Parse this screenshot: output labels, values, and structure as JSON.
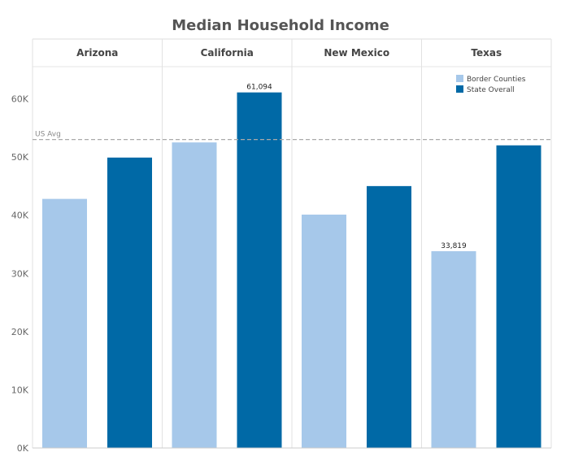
{
  "chart_data": {
    "type": "bar",
    "title": "Median Household Income",
    "categories": [
      "Arizona",
      "California",
      "New Mexico",
      "Texas"
    ],
    "series": [
      {
        "name": "Border Counties",
        "color": "#a6c8ea",
        "values": [
          42800,
          52500,
          40100,
          33819
        ]
      },
      {
        "name": "State Overall",
        "color": "#0069a6",
        "values": [
          49900,
          61094,
          45000,
          52000
        ]
      }
    ],
    "data_labels": [
      {
        "series": 1,
        "category": 1,
        "text": "61,094"
      },
      {
        "series": 0,
        "category": 3,
        "text": "33,819"
      }
    ],
    "ylim": [
      0,
      60000
    ],
    "yticks": [
      {
        "value": 0,
        "label": "0K"
      },
      {
        "value": 10000,
        "label": "10K"
      },
      {
        "value": 20000,
        "label": "20K"
      },
      {
        "value": 30000,
        "label": "30K"
      },
      {
        "value": 40000,
        "label": "40K"
      },
      {
        "value": 50000,
        "label": "50K"
      },
      {
        "value": 60000,
        "label": "60K"
      }
    ],
    "reference_line": {
      "label": "US Avg",
      "value": 53000
    },
    "legend_position": "top-right",
    "xlabel": "",
    "ylabel": "",
    "grid": false
  }
}
